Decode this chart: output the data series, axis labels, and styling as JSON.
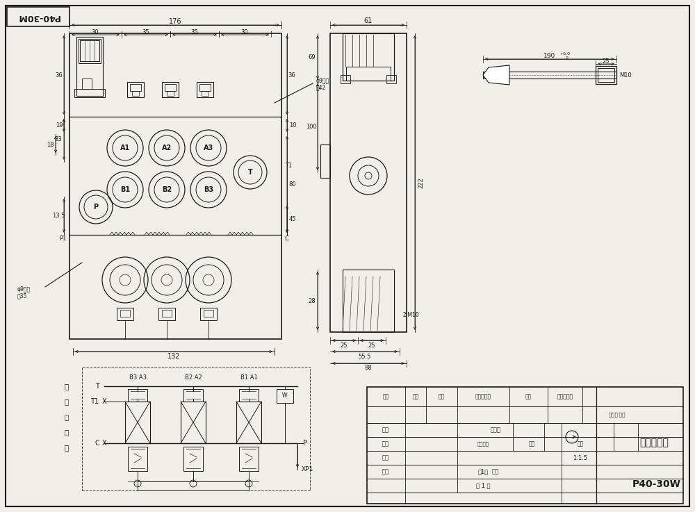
{
  "bg_color": "#f0f0e8",
  "line_color": "#1a1a1a",
  "title_box": "P40-30M",
  "main_title": "P40-30W",
  "subtitle": "三联多路阀",
  "scale": "1:1.5",
  "design_label": "设计",
  "check_label": "校对",
  "review_label": "审评",
  "process_label": "工艺",
  "standard_label": "标准化",
  "approve_label": "批准",
  "weight_label": "重量",
  "ratio_label": "比例",
  "symbol_label": "标记",
  "amount_label": "件数",
  "zone_label": "分区",
  "docnum_label": "关联文件号",
  "sign_label": "签名",
  "date_label": "年、月、日",
  "hydraulic_label": "液压原理图",
  "dim_176": "176",
  "dim_30a": "30",
  "dim_35a": "35",
  "dim_35b": "35",
  "dim_30b": "30",
  "dim_36a": "36",
  "dim_36b": "36",
  "dim_19": "19",
  "dim_18": "18",
  "dim_33": "33",
  "dim_135": "13.5",
  "dim_132": "132",
  "dim_61": "61",
  "dim_69": "69",
  "dim_100": "100",
  "dim_28": "28",
  "dim_25a": "25",
  "dim_25b": "25",
  "dim_555": "55.5",
  "dim_88": "88",
  "dim_222": "222",
  "dim_10": "10",
  "dim_45": "45",
  "dim_80": "80",
  "dim_190": "190+5.0\n     0",
  "dim_25c": "25",
  "dim_m10": "M10",
  "dim_phi9_1": "φ9通孔",
  "dim_h42": "高42",
  "dim_phi9_2": "φ9通孔",
  "dim_h35": "高35",
  "dim_2m10": "2-M10",
  "label_A1": "A1",
  "label_A2": "A2",
  "label_A3": "A3",
  "label_B1": "B1",
  "label_B2": "B2",
  "label_B3": "B3",
  "label_P": "P",
  "label_T": "T",
  "label_T1": "T1",
  "label_P1": "P1",
  "label_C": "C",
  "sch_T": "T",
  "sch_T1": "T1",
  "sch_C": "C",
  "sch_P": "P",
  "sch_P1": "P1",
  "sch_B3A3": "B3 A3",
  "sch_B2A2": "B2 A2",
  "sch_B1A1": "B1 A1",
  "version_label": "版本号 类型",
  "stage_label": "阶段标记",
  "sheet_total": "共1张",
  "page_label": "第 1 页"
}
